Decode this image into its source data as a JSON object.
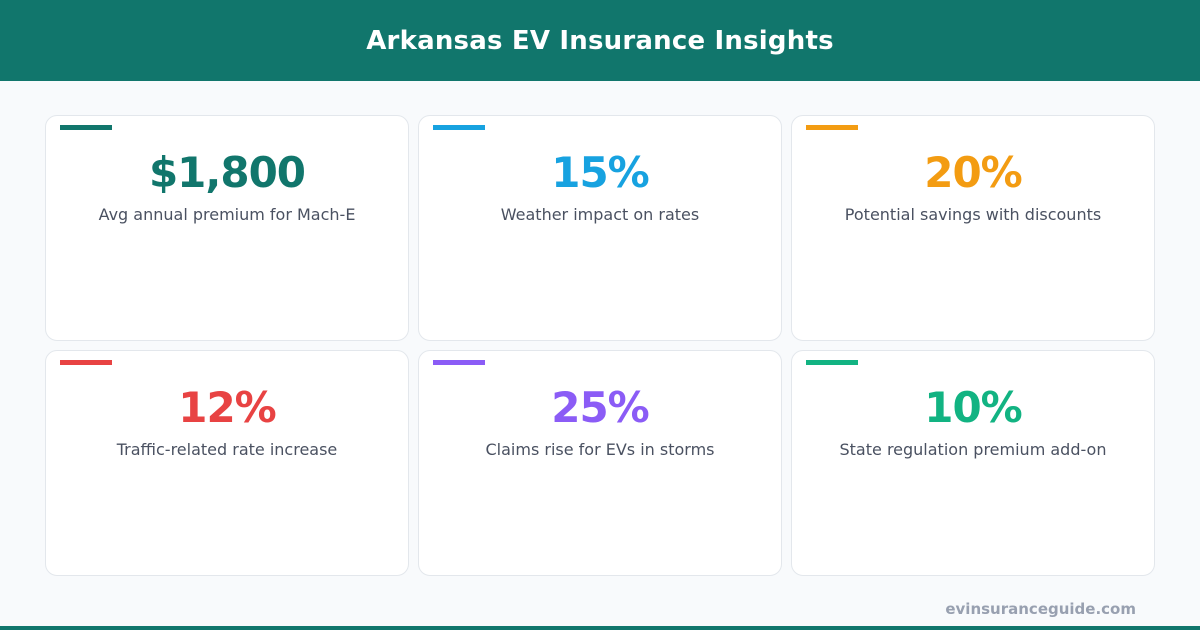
{
  "header": {
    "title": "Arkansas EV Insurance Insights"
  },
  "cards": [
    {
      "value": "$1,800",
      "label": "Avg annual premium for Mach-E",
      "color": "#11766c"
    },
    {
      "value": "15%",
      "label": "Weather impact on rates",
      "color": "#17a2e0"
    },
    {
      "value": "20%",
      "label": "Potential savings with discounts",
      "color": "#f39c12"
    },
    {
      "value": "12%",
      "label": "Traffic-related rate increase",
      "color": "#e84343"
    },
    {
      "value": "25%",
      "label": "Claims rise for EVs in storms",
      "color": "#8b5cf6"
    },
    {
      "value": "10%",
      "label": "State regulation premium add-on",
      "color": "#12b382"
    }
  ],
  "footer": {
    "site": "evinsuranceguide.com"
  }
}
